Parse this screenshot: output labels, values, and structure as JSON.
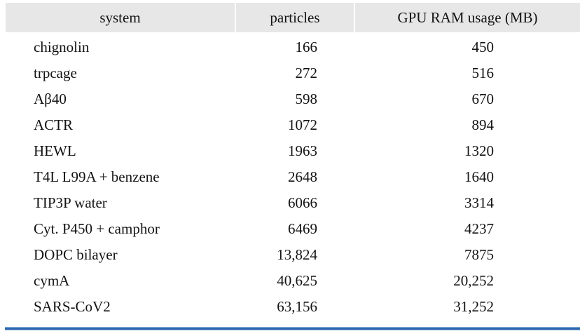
{
  "table": {
    "columns": {
      "system_label": "system",
      "particles_label": "particles",
      "gpu_label": "GPU RAM usage (MB)"
    },
    "rows": [
      {
        "system": "chignolin",
        "particles": "166",
        "gpu_ram": "450"
      },
      {
        "system": "trpcage",
        "particles": "272",
        "gpu_ram": "516"
      },
      {
        "system": "Aβ40",
        "particles": "598",
        "gpu_ram": "670"
      },
      {
        "system": "ACTR",
        "particles": "1072",
        "gpu_ram": "894"
      },
      {
        "system": "HEWL",
        "particles": "1963",
        "gpu_ram": "1320"
      },
      {
        "system": "T4L L99A + benzene",
        "particles": "2648",
        "gpu_ram": "1640"
      },
      {
        "system": "TIP3P water",
        "particles": "6066",
        "gpu_ram": "3314"
      },
      {
        "system": "Cyt. P450 + camphor",
        "particles": "6469",
        "gpu_ram": "4237"
      },
      {
        "system": "DOPC bilayer",
        "particles": "13,824",
        "gpu_ram": "7875"
      },
      {
        "system": "cymA",
        "particles": "40,625",
        "gpu_ram": "20,252"
      },
      {
        "system": "SARS-CoV2",
        "particles": "63,156",
        "gpu_ram": "31,252"
      }
    ],
    "colors": {
      "header_bg": "#e7e7e7",
      "rule_blue_dark": "#2d68ae",
      "rule_blue_light": "#8fb2dc",
      "text": "#131313"
    }
  }
}
